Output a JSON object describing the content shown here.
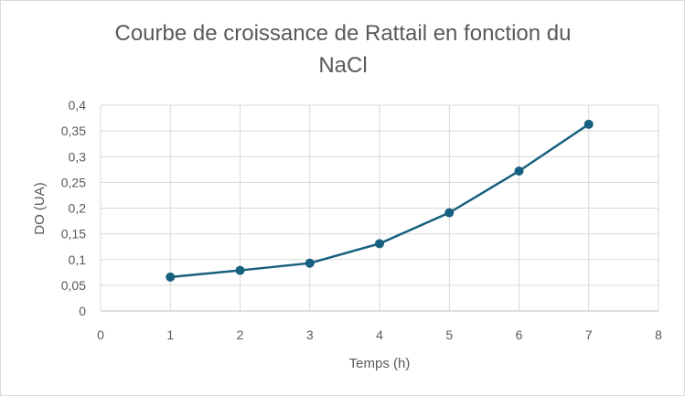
{
  "chart_data": {
    "type": "line",
    "title": "Courbe de croissance de Rattail en fonction du NaCl",
    "title_lines": [
      "Courbe de croissance de Rattail en fonction du",
      "NaCl"
    ],
    "xlabel": "Temps (h)",
    "ylabel": "DO (UA)",
    "xlim": [
      0,
      8
    ],
    "ylim": [
      0,
      0.4
    ],
    "x_ticks": [
      "0",
      "1",
      "2",
      "3",
      "4",
      "5",
      "6",
      "7",
      "8"
    ],
    "y_ticks": [
      "0",
      "0,05",
      "0,1",
      "0,15",
      "0,2",
      "0,25",
      "0,3",
      "0,35",
      "0,4"
    ],
    "grid": true,
    "legend": "none",
    "series": [
      {
        "x": [
          1,
          2,
          3,
          4,
          5,
          6,
          7
        ],
        "values": [
          0.066,
          0.079,
          0.093,
          0.131,
          0.191,
          0.272,
          0.363
        ],
        "color": "#17607f"
      }
    ]
  }
}
